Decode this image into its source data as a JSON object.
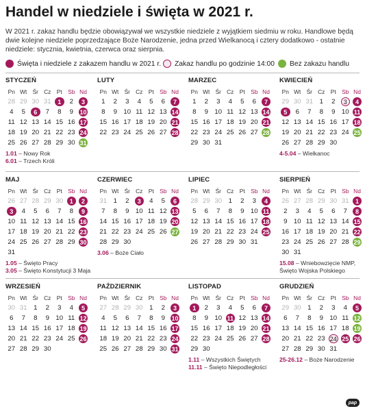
{
  "title": "Handel w niedziele i święta w 2021 r.",
  "intro": "W 2021 r. zakaz handlu będzie obowiązywał we wszystkie niedziele z wyjątkiem siedmiu w roku. Handlowe będą dwie kolejne niedziele poprzedzające Boże Narodzenie, jedna przed Wielkanocą i cztery dodatkowo - ostatnie niedziele: stycznia, kwietnia, czerwca oraz sierpnia.",
  "legend": {
    "holiday": "Święta i niedziele z zakazem handlu w 2021 r.",
    "restricted": "Zakaz handlu po godzinie 14:00",
    "trading": "Bez zakazu handlu"
  },
  "colors": {
    "holiday": "#a3195b",
    "trading": "#7ab33f",
    "restricted": "#f6eaf0"
  },
  "day_headers": [
    "Pn",
    "Wt",
    "Śr",
    "Cz",
    "Pt",
    "Sb",
    "Nd"
  ],
  "months": [
    {
      "name": "STYCZEŃ",
      "prev": [
        28,
        29,
        30,
        31
      ],
      "days": 31,
      "next": [],
      "holiday": [
        1,
        3,
        6,
        10,
        17,
        24
      ],
      "trading": [
        31
      ],
      "restricted": [],
      "notes": [
        {
          "date": "1.01",
          "text": "Nowy Rok"
        },
        {
          "date": "6.01",
          "text": "Trzech Króli"
        }
      ]
    },
    {
      "name": "LUTY",
      "prev": [],
      "days": 28,
      "next": [],
      "holiday": [
        7,
        14,
        21,
        28
      ],
      "trading": [],
      "restricted": [],
      "notes": []
    },
    {
      "name": "MARZEC",
      "prev": [],
      "days": 31,
      "next": [],
      "holiday": [
        7,
        14,
        21
      ],
      "trading": [
        28
      ],
      "restricted": [],
      "notes": []
    },
    {
      "name": "KWIECIEŃ",
      "prev": [
        29,
        30,
        31
      ],
      "days": 30,
      "next": [],
      "holiday": [
        4,
        5,
        11,
        18
      ],
      "trading": [
        25
      ],
      "restricted": [
        3
      ],
      "notes": [
        {
          "date": "4-5.04",
          "text": "Wielkanoc"
        }
      ]
    },
    {
      "name": "MAJ",
      "prev": [
        26,
        27,
        28,
        29,
        30
      ],
      "days": 31,
      "next": [],
      "holiday": [
        1,
        2,
        3,
        9,
        16,
        23,
        30
      ],
      "trading": [],
      "restricted": [],
      "notes": [
        {
          "date": "1.05",
          "text": "Święto Pracy"
        },
        {
          "date": "3.05",
          "text": "Święto Konstytucji 3 Maja"
        }
      ]
    },
    {
      "name": "CZERWIEC",
      "prev": [
        31
      ],
      "days": 30,
      "next": [],
      "holiday": [
        3,
        6,
        13,
        20
      ],
      "trading": [
        27
      ],
      "restricted": [],
      "notes": [
        {
          "date": "3.06",
          "text": "Boże Ciało"
        }
      ]
    },
    {
      "name": "LIPIEC",
      "prev": [
        28,
        29,
        30
      ],
      "days": 31,
      "next": [],
      "holiday": [
        4,
        11,
        18,
        25
      ],
      "trading": [],
      "restricted": [],
      "notes": []
    },
    {
      "name": "SIERPIEŃ",
      "prev": [
        26,
        27,
        28,
        29,
        30,
        31
      ],
      "days": 31,
      "next": [],
      "holiday": [
        1,
        8,
        15,
        22
      ],
      "trading": [
        29
      ],
      "restricted": [],
      "notes": [
        {
          "date": "15.08",
          "text": "Wniebowzięcie NMP, Święto Wojska Polskiego"
        }
      ]
    },
    {
      "name": "WRZESIEŃ",
      "prev": [
        30,
        31
      ],
      "days": 30,
      "next": [],
      "holiday": [
        5,
        12,
        19,
        26
      ],
      "trading": [],
      "restricted": [],
      "notes": []
    },
    {
      "name": "PAŹDZIERNIK",
      "prev": [
        27,
        28,
        29,
        30
      ],
      "days": 31,
      "next": [],
      "holiday": [
        3,
        10,
        17,
        24,
        31
      ],
      "trading": [],
      "restricted": [],
      "notes": []
    },
    {
      "name": "LISTOPAD",
      "prev": [],
      "days": 30,
      "next": [],
      "holiday": [
        1,
        7,
        11,
        14,
        21,
        28
      ],
      "trading": [],
      "restricted": [],
      "notes": [
        {
          "date": "1.11",
          "text": "Wszystkich Świętych"
        },
        {
          "date": "11.11",
          "text": "Święto Niepodległości"
        }
      ]
    },
    {
      "name": "GRUDZIEŃ",
      "prev": [
        29,
        30
      ],
      "days": 31,
      "next": [],
      "holiday": [
        5,
        25,
        26
      ],
      "trading": [
        12,
        19
      ],
      "restricted": [
        24
      ],
      "notes": [
        {
          "date": "25-26.12",
          "text": "Boże Narodzenie"
        }
      ]
    }
  ],
  "logo": "pap"
}
